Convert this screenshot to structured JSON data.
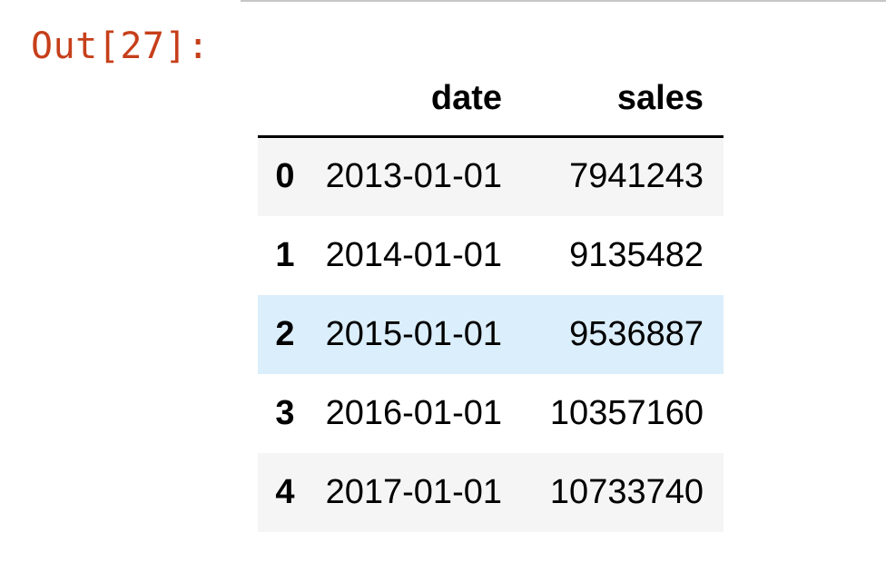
{
  "output": {
    "prompt": "Out[27]:"
  },
  "table": {
    "columns": [
      "date",
      "sales"
    ],
    "rows": [
      {
        "index": "0",
        "date": "2013-01-01",
        "sales": "7941243"
      },
      {
        "index": "1",
        "date": "2014-01-01",
        "sales": "9135482"
      },
      {
        "index": "2",
        "date": "2015-01-01",
        "sales": "9536887"
      },
      {
        "index": "3",
        "date": "2016-01-01",
        "sales": "10357160"
      },
      {
        "index": "4",
        "date": "2017-01-01",
        "sales": "10733740"
      }
    ],
    "highlighted_row": 2
  },
  "colors": {
    "prompt": "#c63f1a",
    "row_stripe": "#f5f5f5",
    "row_hover": "#dbeefb"
  }
}
